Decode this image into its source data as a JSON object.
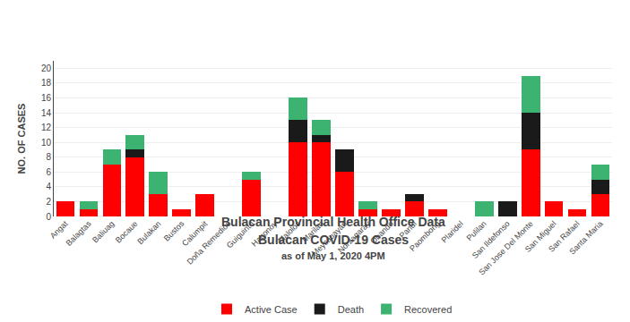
{
  "chart_data": {
    "type": "bar",
    "title": "Bulacan Provincial Health Office Data",
    "subtitle": "Bulacan COVID-19 Cases",
    "annotations": [
      "as of May 1, 2020 4PM"
    ],
    "y_label": "NO. OF CASES",
    "categories": [
      "Angat",
      "Balagtas",
      "Baliuag",
      "Bocaue",
      "Bulakan",
      "Bustos",
      "Calumpit",
      "Doña Remedios",
      "Guiguinto",
      "Hagonoy",
      "Malolos",
      "Marilao",
      "Meycauayan",
      "Norzagaray",
      "Obando",
      "Pandi",
      "Paombong",
      "Plaridel",
      "Pulilan",
      "San Ildefonso",
      "San Jose Del Monte",
      "San Miguel",
      "San Rafael",
      "Santa Maria"
    ],
    "series": [
      {
        "name": "Active Case",
        "color": "#ff0000",
        "values": [
          2,
          1,
          7,
          8,
          3,
          1,
          3,
          0,
          5,
          0,
          10,
          10,
          6,
          1,
          1,
          2,
          1,
          0,
          0,
          0,
          9,
          2,
          1,
          3
        ]
      },
      {
        "name": "Death",
        "color": "#1a1a1a",
        "values": [
          0,
          0,
          0,
          1,
          0,
          0,
          0,
          0,
          0,
          0,
          3,
          1,
          3,
          0,
          0,
          1,
          0,
          0,
          0,
          2,
          5,
          0,
          0,
          2
        ]
      },
      {
        "name": "Recovered",
        "color": "#3cb371",
        "values": [
          0,
          1,
          2,
          2,
          3,
          0,
          0,
          0,
          1,
          0,
          3,
          2,
          0,
          1,
          0,
          0,
          0,
          0,
          2,
          0,
          5,
          0,
          0,
          2
        ]
      }
    ],
    "stacked": true,
    "ylim": [
      0,
      21
    ],
    "yticks": [
      0,
      2,
      4,
      6,
      8,
      10,
      12,
      14,
      16,
      18,
      20
    ],
    "grid": true,
    "legend": "bottom"
  }
}
